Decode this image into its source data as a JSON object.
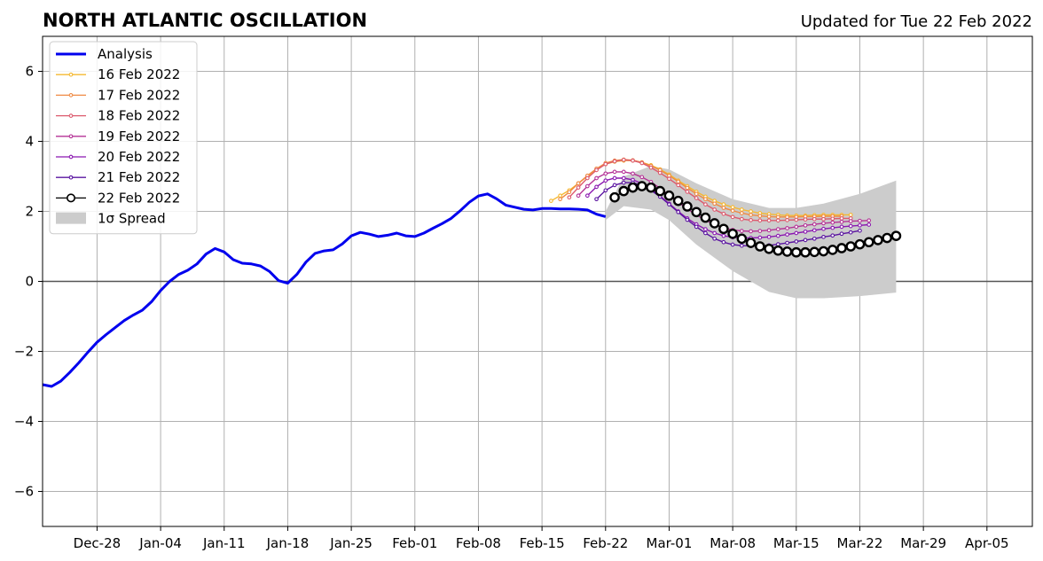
{
  "chart_data": {
    "type": "line",
    "title": "NORTH ATLANTIC OSCILLATION",
    "subtitle": "Updated for Tue 22 Feb 2022",
    "ylim": [
      -7,
      7
    ],
    "yticks": [
      -6,
      -4,
      -2,
      0,
      2,
      4,
      6
    ],
    "ytick_labels": [
      "−6",
      "−4",
      "−2",
      "0",
      "2",
      "4",
      "6"
    ],
    "xlim": [
      "2021-12-22",
      "2022-04-10"
    ],
    "xticks": [
      {
        "date": "2021-12-28",
        "label": "Dec-28"
      },
      {
        "date": "2022-01-04",
        "label": "Jan-04"
      },
      {
        "date": "2022-01-11",
        "label": "Jan-11"
      },
      {
        "date": "2022-01-18",
        "label": "Jan-18"
      },
      {
        "date": "2022-01-25",
        "label": "Jan-25"
      },
      {
        "date": "2022-02-01",
        "label": "Feb-01"
      },
      {
        "date": "2022-02-08",
        "label": "Feb-08"
      },
      {
        "date": "2022-02-15",
        "label": "Feb-15"
      },
      {
        "date": "2022-02-22",
        "label": "Feb-22"
      },
      {
        "date": "2022-03-01",
        "label": "Mar-01"
      },
      {
        "date": "2022-03-08",
        "label": "Mar-08"
      },
      {
        "date": "2022-03-15",
        "label": "Mar-15"
      },
      {
        "date": "2022-03-22",
        "label": "Mar-22"
      },
      {
        "date": "2022-03-29",
        "label": "Mar-29"
      },
      {
        "date": "2022-04-05",
        "label": "Apr-05"
      }
    ],
    "grid": true,
    "legend_position": "upper-left",
    "analysis": {
      "name": "Analysis",
      "color": "#0000ee",
      "start": "2021-12-22",
      "values": [
        -2.95,
        -3.0,
        -2.85,
        -2.6,
        -2.32,
        -2.02,
        -1.74,
        -1.52,
        -1.32,
        -1.12,
        -0.96,
        -0.82,
        -0.58,
        -0.26,
        0.0,
        0.2,
        0.32,
        0.5,
        0.78,
        0.94,
        0.84,
        0.62,
        0.52,
        0.5,
        0.44,
        0.28,
        0.02,
        -0.05,
        0.2,
        0.55,
        0.8,
        0.87,
        0.9,
        1.07,
        1.3,
        1.4,
        1.35,
        1.28,
        1.32,
        1.38,
        1.3,
        1.28,
        1.38,
        1.52,
        1.65,
        1.8,
        2.02,
        2.26,
        2.44,
        2.5,
        2.36,
        2.18,
        2.12,
        2.06,
        2.04,
        2.08,
        2.08,
        2.07,
        2.07,
        2.06,
        2.04,
        1.92,
        1.85
      ]
    },
    "forecasts": [
      {
        "name": "16 Feb 2022",
        "color": "#f5b830",
        "start": "2022-02-16",
        "values": [
          2.3,
          2.45,
          2.6,
          2.8,
          3.0,
          3.2,
          3.35,
          3.42,
          3.45,
          3.45,
          3.4,
          3.32,
          3.2,
          3.05,
          2.88,
          2.72,
          2.56,
          2.42,
          2.3,
          2.2,
          2.12,
          2.05,
          2.0,
          1.95,
          1.92,
          1.9,
          1.88,
          1.88,
          1.88,
          1.89,
          1.9,
          1.9,
          1.9,
          1.9
        ]
      },
      {
        "name": "17 Feb 2022",
        "color": "#ef8a44",
        "start": "2022-02-17",
        "values": [
          2.35,
          2.55,
          2.8,
          3.02,
          3.22,
          3.38,
          3.45,
          3.48,
          3.46,
          3.4,
          3.3,
          3.18,
          3.02,
          2.85,
          2.67,
          2.5,
          2.35,
          2.22,
          2.1,
          2.02,
          1.95,
          1.9,
          1.87,
          1.85,
          1.84,
          1.84,
          1.84,
          1.85,
          1.85,
          1.86,
          1.86,
          1.86
        ]
      },
      {
        "name": "18 Feb 2022",
        "color": "#dc5a6e",
        "start": "2022-02-18",
        "values": [
          2.4,
          2.68,
          2.95,
          3.18,
          3.35,
          3.43,
          3.47,
          3.45,
          3.38,
          3.25,
          3.1,
          2.93,
          2.75,
          2.56,
          2.38,
          2.2,
          2.05,
          1.93,
          1.84,
          1.78,
          1.75,
          1.74,
          1.74,
          1.74,
          1.75,
          1.76,
          1.77,
          1.78,
          1.78,
          1.79,
          1.8,
          1.8
        ]
      },
      {
        "name": "19 Feb 2022",
        "color": "#b43296",
        "start": "2022-02-19",
        "values": [
          2.45,
          2.72,
          2.95,
          3.08,
          3.13,
          3.13,
          3.08,
          2.98,
          2.84,
          2.66,
          2.46,
          2.26,
          2.07,
          1.9,
          1.75,
          1.62,
          1.53,
          1.47,
          1.44,
          1.43,
          1.44,
          1.46,
          1.49,
          1.52,
          1.56,
          1.6,
          1.63,
          1.66,
          1.68,
          1.7,
          1.72,
          1.73,
          1.74
        ]
      },
      {
        "name": "20 Feb 2022",
        "color": "#8a18b0",
        "start": "2022-02-20",
        "values": [
          2.45,
          2.7,
          2.88,
          2.95,
          2.95,
          2.9,
          2.8,
          2.64,
          2.44,
          2.22,
          2.0,
          1.8,
          1.63,
          1.49,
          1.38,
          1.3,
          1.26,
          1.24,
          1.24,
          1.25,
          1.27,
          1.3,
          1.34,
          1.38,
          1.42,
          1.46,
          1.5,
          1.53,
          1.56,
          1.58,
          1.6,
          1.62
        ]
      },
      {
        "name": "21 Feb 2022",
        "color": "#5a14a0",
        "start": "2022-02-21",
        "values": [
          2.35,
          2.6,
          2.75,
          2.82,
          2.82,
          2.75,
          2.6,
          2.42,
          2.2,
          1.98,
          1.76,
          1.56,
          1.38,
          1.22,
          1.12,
          1.05,
          1.02,
          1.01,
          1.01,
          1.03,
          1.06,
          1.1,
          1.14,
          1.18,
          1.22,
          1.27,
          1.31,
          1.36,
          1.4,
          1.45
        ]
      },
      {
        "name": "22 Feb 2022",
        "color": "#000000",
        "start": "2022-02-23",
        "values": [
          2.4,
          2.58,
          2.68,
          2.72,
          2.68,
          2.58,
          2.45,
          2.3,
          2.14,
          1.98,
          1.82,
          1.66,
          1.5,
          1.36,
          1.22,
          1.1,
          1.0,
          0.93,
          0.88,
          0.85,
          0.83,
          0.83,
          0.84,
          0.86,
          0.9,
          0.95,
          1.0,
          1.06,
          1.12,
          1.18,
          1.24,
          1.3
        ]
      }
    ],
    "spread": {
      "name": "1σ Spread",
      "color": "#cccccc",
      "points": [
        {
          "date": "2022-02-22",
          "lower": 1.75,
          "upper": 2.0
        },
        {
          "date": "2022-02-24",
          "lower": 2.15,
          "upper": 3.0
        },
        {
          "date": "2022-02-27",
          "lower": 2.05,
          "upper": 3.3
        },
        {
          "date": "2022-03-01",
          "lower": 1.75,
          "upper": 3.2
        },
        {
          "date": "2022-03-04",
          "lower": 1.05,
          "upper": 2.8
        },
        {
          "date": "2022-03-08",
          "lower": 0.3,
          "upper": 2.35
        },
        {
          "date": "2022-03-12",
          "lower": -0.3,
          "upper": 2.1
        },
        {
          "date": "2022-03-15",
          "lower": -0.48,
          "upper": 2.1
        },
        {
          "date": "2022-03-18",
          "lower": -0.48,
          "upper": 2.22
        },
        {
          "date": "2022-03-22",
          "lower": -0.42,
          "upper": 2.5
        },
        {
          "date": "2022-03-26",
          "lower": -0.32,
          "upper": 2.88
        }
      ]
    }
  }
}
